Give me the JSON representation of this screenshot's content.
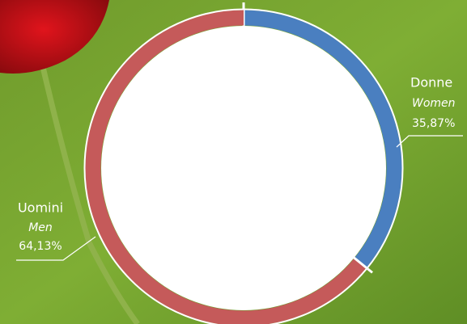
{
  "chart_data": {
    "type": "donut",
    "categories": [
      "Donne",
      "Uomini"
    ],
    "translations": [
      "Women",
      "Men"
    ],
    "values": [
      35.87,
      64.13
    ],
    "value_labels": [
      "35,87%",
      "64,13%"
    ],
    "colors": [
      "#4a7fc0",
      "#c55a5a"
    ]
  }
}
